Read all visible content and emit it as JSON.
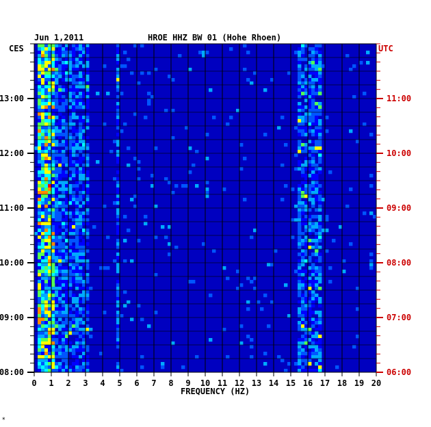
{
  "chart_data": {
    "type": "heatmap",
    "date_label": "Jun 1,2011",
    "title": "HROE HHZ BW 01 (Hohe Rhoen)",
    "xlabel": "FREQUENCY (HZ)",
    "left_axis_label": "CES",
    "right_axis_label": "UTC",
    "x_ticks": [
      "0",
      "1",
      "2",
      "3",
      "4",
      "5",
      "6",
      "7",
      "8",
      "9",
      "10",
      "11",
      "12",
      "13",
      "14",
      "15",
      "16",
      "17",
      "18",
      "19",
      "20"
    ],
    "xlim": [
      0,
      20
    ],
    "left_time_ticks": [
      "13:00",
      "12:00",
      "11:00",
      "10:00",
      "09:00",
      "08:00"
    ],
    "right_time_ticks": [
      "11:00",
      "10:00",
      "09:00",
      "08:00",
      "07:00",
      "06:00"
    ],
    "time_range_ces": [
      "08:00",
      "13:50"
    ],
    "colormap": [
      "#00008b",
      "#0000cd",
      "#0000ff",
      "#0055ff",
      "#00aaff",
      "#00ffff",
      "#55ff55",
      "#ffff00",
      "#ff8800",
      "#ff0000"
    ],
    "background_color": "#0000c0",
    "right_axis_color": "#cc0000",
    "energy_bands_hz": [
      {
        "from": 0.2,
        "to": 1.2,
        "level": "high"
      },
      {
        "from": 1.2,
        "to": 3.2,
        "level": "medium"
      },
      {
        "from": 4.7,
        "to": 5.0,
        "level": "medium"
      },
      {
        "from": 15.5,
        "to": 16.8,
        "level": "medium"
      }
    ],
    "grid": true
  },
  "footer_mark": "*"
}
